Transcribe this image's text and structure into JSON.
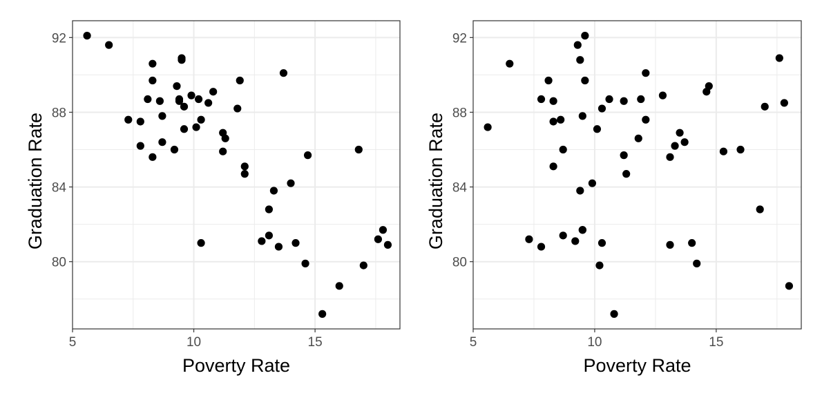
{
  "chart_data": [
    {
      "type": "scatter",
      "title": "",
      "xlabel": "Poverty Rate",
      "ylabel": "Graduation Rate",
      "xlim": [
        5,
        18.5
      ],
      "ylim": [
        76.4,
        92.9
      ],
      "xticks": [
        5,
        10,
        15
      ],
      "xtick_labels": [
        "5",
        "10",
        "15"
      ],
      "yticks": [
        80,
        84,
        88,
        92
      ],
      "ytick_labels": [
        "80",
        "84",
        "88",
        "92"
      ],
      "grid": true,
      "theme": "bw",
      "point_color": "#000000",
      "x": [
        5.6,
        6.5,
        7.3,
        7.8,
        7.8,
        8.1,
        8.3,
        8.3,
        8.3,
        8.6,
        8.7,
        8.7,
        9.2,
        9.3,
        9.4,
        9.4,
        9.5,
        9.5,
        9.6,
        9.6,
        9.9,
        10.1,
        10.2,
        10.3,
        10.3,
        10.6,
        10.8,
        11.2,
        11.2,
        11.3,
        11.8,
        11.9,
        12.1,
        12.1,
        12.8,
        13.1,
        13.1,
        13.3,
        13.5,
        13.7,
        14.0,
        14.2,
        14.6,
        14.7,
        15.3,
        16.0,
        16.8,
        17.0,
        17.6,
        17.8,
        18.0
      ],
      "y": [
        92.1,
        91.6,
        87.6,
        87.5,
        86.2,
        88.7,
        90.6,
        89.7,
        85.6,
        88.6,
        87.8,
        86.4,
        86.0,
        89.4,
        88.7,
        88.6,
        90.9,
        90.8,
        88.3,
        87.1,
        88.9,
        87.2,
        88.7,
        87.6,
        81.0,
        88.5,
        89.1,
        86.9,
        85.9,
        86.6,
        88.2,
        89.7,
        85.1,
        84.7,
        81.1,
        82.8,
        81.4,
        83.8,
        80.8,
        90.1,
        84.2,
        81.0,
        79.9,
        85.7,
        77.2,
        78.7,
        86.0,
        79.8,
        81.2,
        81.7,
        80.9
      ]
    },
    {
      "type": "scatter",
      "title": "",
      "xlabel": "Poverty Rate",
      "ylabel": "Graduation Rate",
      "xlim": [
        5,
        18.5
      ],
      "ylim": [
        76.4,
        92.9
      ],
      "xticks": [
        5,
        10,
        15
      ],
      "xtick_labels": [
        "5",
        "10",
        "15"
      ],
      "yticks": [
        80,
        84,
        88,
        92
      ],
      "ytick_labels": [
        "80",
        "84",
        "88",
        "92"
      ],
      "grid": true,
      "theme": "bw",
      "point_color": "#000000",
      "x": [
        5.6,
        6.5,
        7.3,
        7.8,
        7.8,
        8.1,
        8.3,
        8.3,
        8.3,
        8.6,
        8.7,
        8.7,
        9.2,
        9.3,
        9.4,
        9.4,
        9.5,
        9.5,
        9.5,
        9.6,
        9.6,
        9.9,
        10.1,
        10.2,
        10.3,
        10.3,
        10.6,
        10.8,
        11.2,
        11.2,
        11.3,
        11.8,
        11.9,
        12.1,
        12.1,
        12.8,
        13.1,
        13.1,
        13.3,
        13.5,
        13.7,
        14.0,
        14.2,
        14.6,
        14.7,
        15.3,
        16.0,
        16.8,
        17.0,
        17.6,
        17.8,
        18.0
      ],
      "y": [
        87.2,
        90.6,
        81.2,
        88.7,
        80.8,
        89.7,
        88.6,
        87.5,
        85.1,
        87.6,
        86.0,
        81.4,
        81.1,
        91.6,
        90.8,
        83.8,
        87.8,
        81.7,
        81.7,
        92.1,
        89.7,
        84.2,
        87.1,
        79.8,
        88.2,
        81.0,
        88.7,
        77.2,
        88.6,
        85.7,
        84.7,
        86.6,
        88.7,
        90.1,
        87.6,
        88.9,
        85.6,
        80.9,
        86.2,
        86.9,
        86.4,
        81.0,
        79.9,
        89.1,
        89.4,
        85.9,
        86.0,
        82.8,
        88.3,
        90.9,
        88.5,
        78.7
      ]
    }
  ]
}
